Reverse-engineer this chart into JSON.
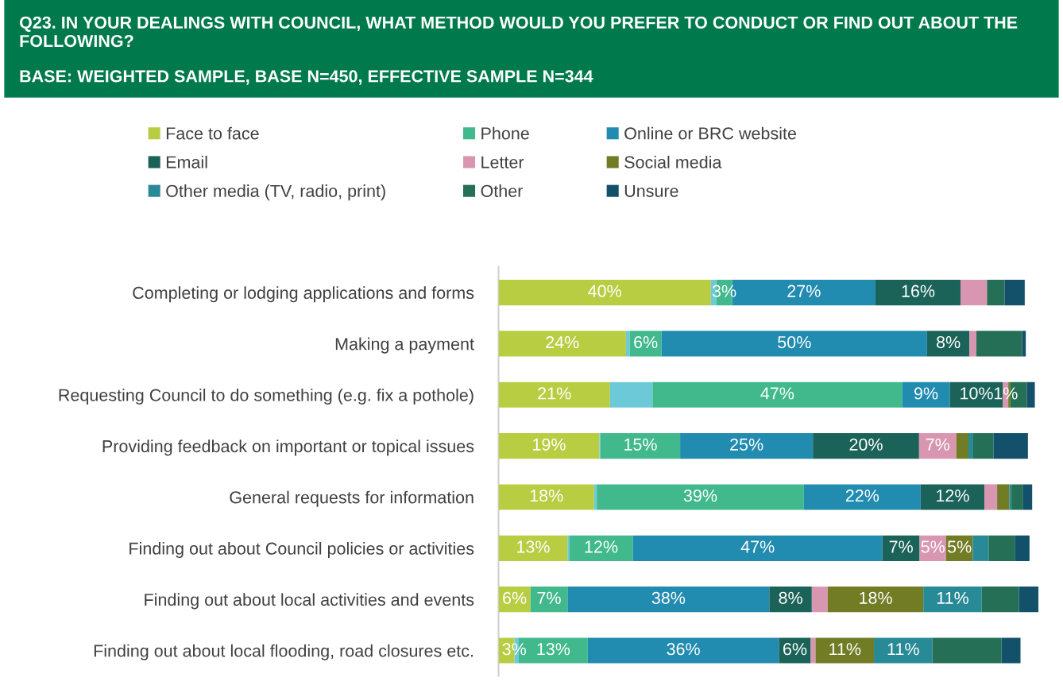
{
  "chart_data": {
    "type": "bar",
    "orientation": "horizontal",
    "stacked": true,
    "legend": "top",
    "title": "Q23. IN YOUR DEALINGS WITH COUNCIL, WHAT METHOD WOULD YOU PREFER TO CONDUCT OR FIND OUT ABOUT THE FOLLOWING?",
    "subtitle": "BASE: WEIGHTED SAMPLE, BASE N=450, EFFECTIVE SAMPLE N=344",
    "categories": [
      "Completing or lodging applications and forms",
      "Making a payment",
      "Requesting Council to do something (e.g. fix a pothole)",
      "Providing feedback on important or topical issues",
      "General requests for information",
      "Finding out about Council policies or activities",
      "Finding out about local activities and events",
      "Finding out about local flooding, road closures etc."
    ],
    "series": [
      {
        "name": "Face to face",
        "color": "#b9cd43",
        "values": [
          40,
          24,
          21,
          19,
          18,
          13,
          6,
          3
        ],
        "value_labels": [
          "40%",
          "24%",
          "21%",
          "19%",
          "18%",
          "13%",
          "6%",
          "3%"
        ]
      },
      {
        "color": "#6ccad8",
        "values": [
          1,
          0.7,
          8,
          0.2,
          0.5,
          0.3,
          0,
          0.8
        ],
        "value_labels": [
          null,
          null,
          null,
          null,
          null,
          null,
          null,
          null
        ]
      },
      {
        "name": "Phone",
        "color": "#41b98c",
        "values": [
          3,
          6,
          47,
          15,
          39,
          12,
          7,
          13
        ],
        "value_labels": [
          "3%",
          "6%",
          "47%",
          "15%",
          "39%",
          "12%",
          "7%",
          "13%"
        ]
      },
      {
        "name": "Online or BRC website",
        "color": "#218bb0",
        "values": [
          27,
          50,
          9,
          25,
          22,
          47,
          38,
          36
        ],
        "value_labels": [
          "27%",
          "50%",
          "9%",
          "25%",
          "22%",
          "47%",
          "38%",
          "36%"
        ]
      },
      {
        "name": "Email",
        "color": "#1b6359",
        "values": [
          16,
          8,
          10,
          20,
          12,
          7,
          8,
          6
        ],
        "value_labels": [
          "16%",
          "8%",
          "10%",
          "20%",
          "12%",
          "7%",
          "8%",
          "6%"
        ]
      },
      {
        "name": "Letter",
        "color": "#d996b0",
        "values": [
          5,
          1.3,
          1,
          7,
          2.4,
          5,
          3,
          0.9
        ],
        "value_labels": [
          null,
          null,
          "1%",
          "7%",
          null,
          "5%",
          null,
          null
        ]
      },
      {
        "name": "Social media",
        "color": "#717c25",
        "values": [
          0,
          0,
          0.4,
          2.3,
          2.3,
          5,
          18,
          11
        ],
        "value_labels": [
          null,
          null,
          null,
          null,
          null,
          "5%",
          "18%",
          "11%"
        ]
      },
      {
        "name": "Other media (TV, radio, print)",
        "color": "#288a96",
        "values": [
          0,
          0,
          0,
          0.9,
          0.4,
          3,
          11,
          11
        ],
        "value_labels": [
          null,
          null,
          null,
          null,
          null,
          null,
          "11%",
          "11%"
        ]
      },
      {
        "name": "Other",
        "color": "#246f55",
        "values": [
          3.3,
          8.6,
          3.1,
          3.8,
          2.2,
          5,
          7,
          13
        ],
        "value_labels": [
          null,
          null,
          null,
          null,
          null,
          null,
          null,
          null
        ]
      },
      {
        "name": "Unsure",
        "color": "#13506a",
        "values": [
          3.8,
          0.7,
          1.5,
          6.5,
          1.7,
          2.7,
          3.7,
          3.6
        ],
        "value_labels": [
          null,
          null,
          null,
          null,
          null,
          null,
          null,
          null
        ]
      }
    ]
  }
}
